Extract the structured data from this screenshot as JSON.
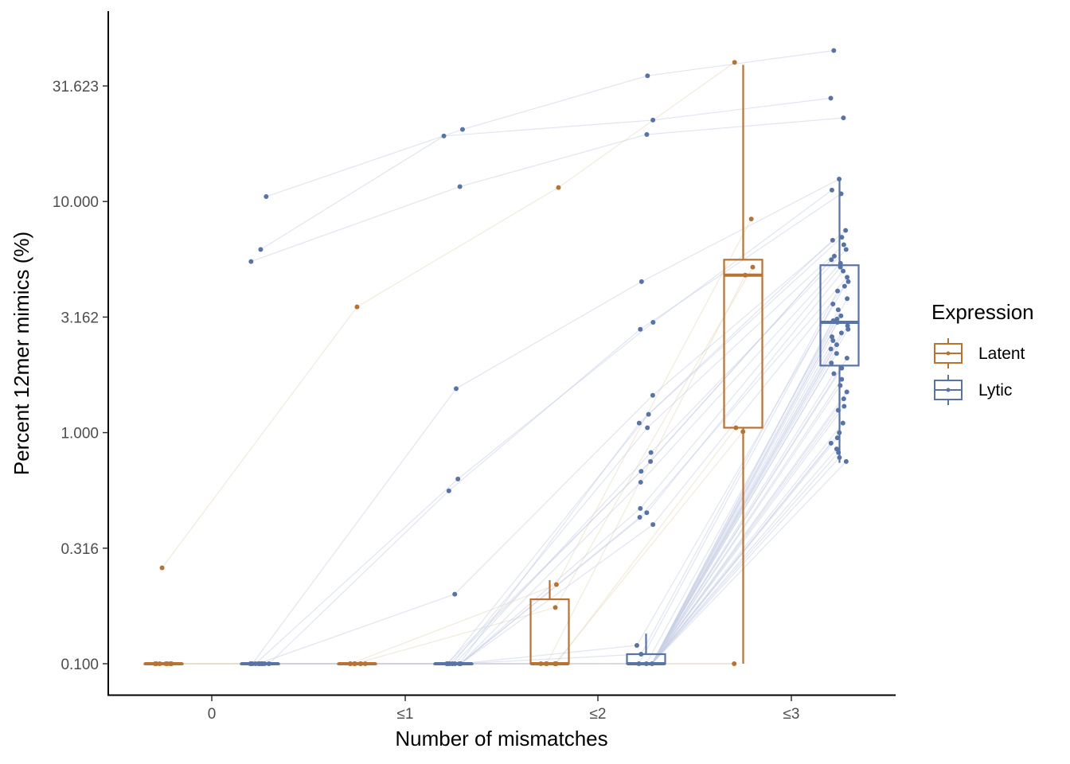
{
  "chart_data": {
    "type": "boxplot",
    "x_label": "Number of mismatches",
    "y_label": "Percent 12mer mimics (%)",
    "y_scale": "log10",
    "y_range": [
      0.085,
      60
    ],
    "y_ticks": [
      "0.100",
      "0.316",
      "1.000",
      "3.162",
      "10.000",
      "31.623"
    ],
    "y_tick_values": [
      0.1,
      0.3162,
      1.0,
      3.162,
      10.0,
      31.623
    ],
    "categories": [
      "0",
      "≤1",
      "≤2",
      "≤3"
    ],
    "grid": false,
    "legend": {
      "title": "Expression",
      "placement": "right",
      "entries": [
        "Latent",
        "Lytic"
      ]
    },
    "series": [
      {
        "name": "Latent",
        "color": "#B87333",
        "boxes": [
          {
            "category": "0",
            "lower_whisker": 0.1,
            "q1": 0.1,
            "median": 0.1,
            "q3": 0.1,
            "upper_whisker": 0.1
          },
          {
            "category": "≤1",
            "lower_whisker": 0.1,
            "q1": 0.1,
            "median": 0.1,
            "q3": 0.1,
            "upper_whisker": 0.1
          },
          {
            "category": "≤2",
            "lower_whisker": 0.1,
            "q1": 0.1,
            "median": 0.1,
            "q3": 0.19,
            "upper_whisker": 0.23
          },
          {
            "category": "≤3",
            "lower_whisker": 0.1,
            "q1": 1.05,
            "median": 4.8,
            "q3": 5.6,
            "upper_whisker": 39
          }
        ],
        "points": [
          {
            "category": "0",
            "values": [
              0.26,
              0.1,
              0.1,
              0.1,
              0.1,
              0.1,
              0.1,
              0.1,
              0.1
            ]
          },
          {
            "category": "≤1",
            "values": [
              3.5,
              0.1,
              0.1,
              0.1,
              0.1,
              0.1,
              0.1,
              0.1,
              0.1
            ]
          },
          {
            "category": "≤2",
            "values": [
              11.5,
              0.22,
              0.175,
              0.1,
              0.1,
              0.1,
              0.1,
              0.1,
              0.1
            ]
          },
          {
            "category": "≤3",
            "values": [
              40,
              8.4,
              5.2,
              4.8,
              1.05,
              1.01,
              0.1
            ]
          }
        ]
      },
      {
        "name": "Lytic",
        "color": "#5873A5",
        "boxes": [
          {
            "category": "0",
            "lower_whisker": 0.1,
            "q1": 0.1,
            "median": 0.1,
            "q3": 0.1,
            "upper_whisker": 0.1
          },
          {
            "category": "≤1",
            "lower_whisker": 0.1,
            "q1": 0.1,
            "median": 0.1,
            "q3": 0.1,
            "upper_whisker": 0.1
          },
          {
            "category": "≤2",
            "lower_whisker": 0.1,
            "q1": 0.1,
            "median": 0.1,
            "q3": 0.11,
            "upper_whisker": 0.135
          },
          {
            "category": "≤3",
            "lower_whisker": 0.74,
            "q1": 1.95,
            "median": 3.0,
            "q3": 5.3,
            "upper_whisker": 12.5
          }
        ],
        "points": [
          {
            "category": "0",
            "values": [
              10.5,
              6.2,
              5.5,
              0.1,
              0.1,
              0.1,
              0.1,
              0.1,
              0.1,
              0.1,
              0.1,
              0.1,
              0.1
            ]
          },
          {
            "category": "≤1",
            "values": [
              20.5,
              19.2,
              11.6,
              1.55,
              0.63,
              0.56,
              0.2,
              0.1,
              0.1,
              0.1,
              0.1,
              0.1,
              0.1,
              0.1
            ]
          },
          {
            "category": "≤2",
            "values": [
              35,
              22.5,
              19.5,
              4.5,
              3.0,
              2.8,
              1.45,
              1.2,
              1.1,
              1.05,
              0.82,
              0.75,
              0.68,
              0.61,
              0.47,
              0.45,
              0.43,
              0.4,
              0.12,
              0.11,
              0.1,
              0.1,
              0.1
            ]
          },
          {
            "category": "≤3",
            "values": [
              45,
              28,
              23,
              12.5,
              11.2,
              10.8,
              7.5,
              7.0,
              6.8,
              6.5,
              6.2,
              5.8,
              5.6,
              5.4,
              5.2,
              5.0,
              4.7,
              4.5,
              4.3,
              4.1,
              3.8,
              3.6,
              3.4,
              3.2,
              3.1,
              3.05,
              3.0,
              2.9,
              2.8,
              2.7,
              2.6,
              2.5,
              2.4,
              2.3,
              2.2,
              2.1,
              2.0,
              1.9,
              1.8,
              1.7,
              1.6,
              1.5,
              1.4,
              1.3,
              1.25,
              1.1,
              1.0,
              0.95,
              0.9,
              0.85,
              0.82,
              0.78,
              0.75
            ]
          }
        ]
      }
    ]
  }
}
